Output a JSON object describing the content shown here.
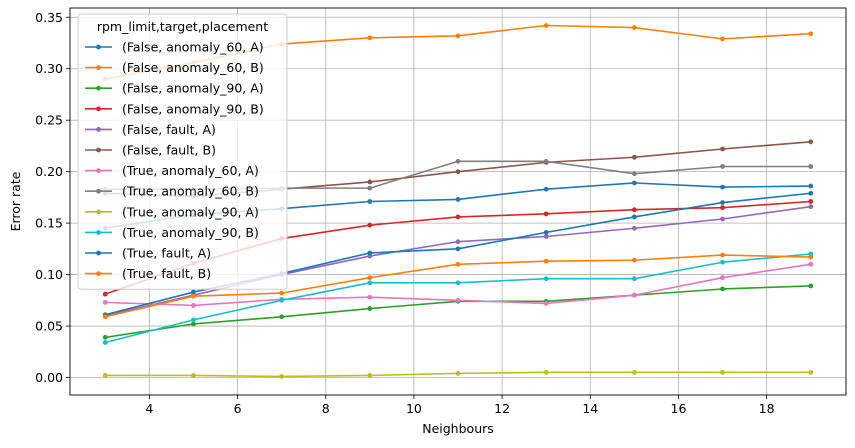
{
  "chart_data": {
    "type": "line",
    "xlabel": "Neighbours",
    "ylabel": "Error rate",
    "xlim": [
      2.2,
      19.8
    ],
    "ylim": [
      -0.017,
      0.359
    ],
    "grid": true,
    "xticks": [
      4,
      6,
      8,
      10,
      12,
      14,
      16,
      18
    ],
    "yticks": [
      0.0,
      0.05,
      0.1,
      0.15,
      0.2,
      0.25,
      0.3,
      0.35
    ],
    "ytick_labels": [
      "0.00",
      "0.05",
      "0.10",
      "0.15",
      "0.20",
      "0.25",
      "0.30",
      "0.35"
    ],
    "legend": {
      "title": "rpm_limit,target,placement",
      "placement": "upper-left"
    },
    "x": [
      3,
      5,
      7,
      9,
      11,
      13,
      15,
      17,
      19
    ],
    "series": [
      {
        "name": "(False, anomaly_60, A)",
        "color": "#1f77b4",
        "values": [
          0.145,
          0.158,
          0.164,
          0.171,
          0.173,
          0.183,
          0.189,
          0.185,
          0.186
        ]
      },
      {
        "name": "(False, anomaly_60, B)",
        "color": "#ff7f0e",
        "values": [
          0.29,
          0.306,
          0.324,
          0.33,
          0.332,
          0.342,
          0.34,
          0.329,
          0.334
        ]
      },
      {
        "name": "(False, anomaly_90, A)",
        "color": "#2ca02c",
        "values": [
          0.039,
          0.052,
          0.059,
          0.067,
          0.074,
          0.074,
          0.08,
          0.086,
          0.089
        ]
      },
      {
        "name": "(False, anomaly_90, B)",
        "color": "#d62728",
        "values": [
          0.081,
          0.111,
          0.135,
          0.148,
          0.156,
          0.159,
          0.163,
          0.165,
          0.171
        ]
      },
      {
        "name": "(False, fault, A)",
        "color": "#9467bd",
        "values": [
          0.06,
          0.08,
          0.1,
          0.118,
          0.132,
          0.137,
          0.145,
          0.154,
          0.166
        ]
      },
      {
        "name": "(False, fault, B)",
        "color": "#8c564b",
        "values": [
          0.179,
          0.176,
          0.183,
          0.19,
          0.2,
          0.209,
          0.214,
          0.222,
          0.229
        ]
      },
      {
        "name": "(True, anomaly_60, A)",
        "color": "#e377c2",
        "values": [
          0.073,
          0.07,
          0.076,
          0.078,
          0.075,
          0.072,
          0.08,
          0.097,
          0.11
        ]
      },
      {
        "name": "(True, anomaly_60, B)",
        "color": "#7f7f7f",
        "values": [
          0.183,
          0.183,
          0.184,
          0.184,
          0.21,
          0.21,
          0.198,
          0.205,
          0.205
        ]
      },
      {
        "name": "(True, anomaly_90, A)",
        "color": "#bcbd22",
        "values": [
          0.002,
          0.002,
          0.001,
          0.002,
          0.004,
          0.005,
          0.005,
          0.005,
          0.005
        ]
      },
      {
        "name": "(True, anomaly_90, B)",
        "color": "#17becf",
        "values": [
          0.034,
          0.056,
          0.075,
          0.092,
          0.092,
          0.096,
          0.096,
          0.112,
          0.12
        ]
      },
      {
        "name": "(True, fault, A)",
        "color": "#1f77b4",
        "values": [
          0.061,
          0.083,
          0.101,
          0.121,
          0.125,
          0.141,
          0.156,
          0.17,
          0.179
        ]
      },
      {
        "name": "(True, fault, B)",
        "color": "#ff7f0e",
        "values": [
          0.059,
          0.079,
          0.082,
          0.097,
          0.11,
          0.113,
          0.114,
          0.119,
          0.117
        ]
      }
    ]
  }
}
